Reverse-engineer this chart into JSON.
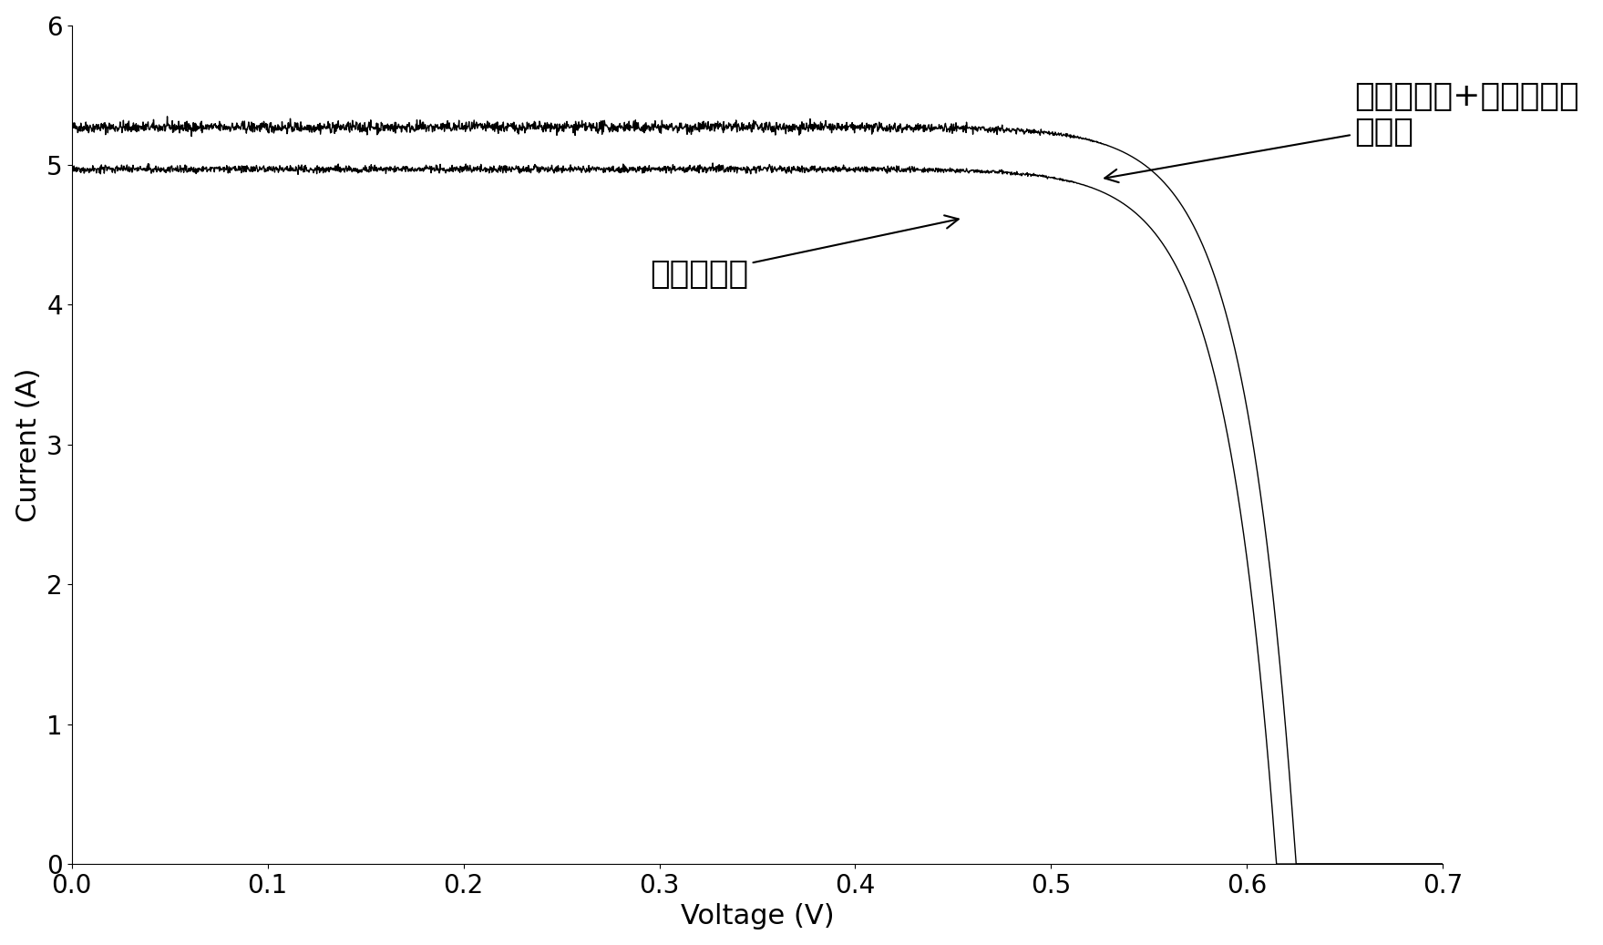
{
  "xlabel": "Voltage (V)",
  "ylabel": "Current (A)",
  "xlim": [
    0.0,
    0.7
  ],
  "ylim": [
    0.0,
    6.0
  ],
  "xticks": [
    0.0,
    0.1,
    0.2,
    0.3,
    0.4,
    0.5,
    0.6,
    0.7
  ],
  "yticks": [
    0,
    1,
    2,
    3,
    4,
    5,
    6
  ],
  "curve1_isc": 5.27,
  "curve1_voc": 0.625,
  "curve1_label": "太阳能电池+量子点光波\n转换层",
  "curve2_isc": 4.97,
  "curve2_voc": 0.615,
  "curve2_label": "太阳能电池",
  "line_color": "#000000",
  "background_color": "#ffffff",
  "noise_amplitude1": 0.02,
  "noise_amplitude2": 0.013,
  "xlabel_fontsize": 22,
  "ylabel_fontsize": 22,
  "tick_fontsize": 20,
  "annotation_fontsize": 26
}
